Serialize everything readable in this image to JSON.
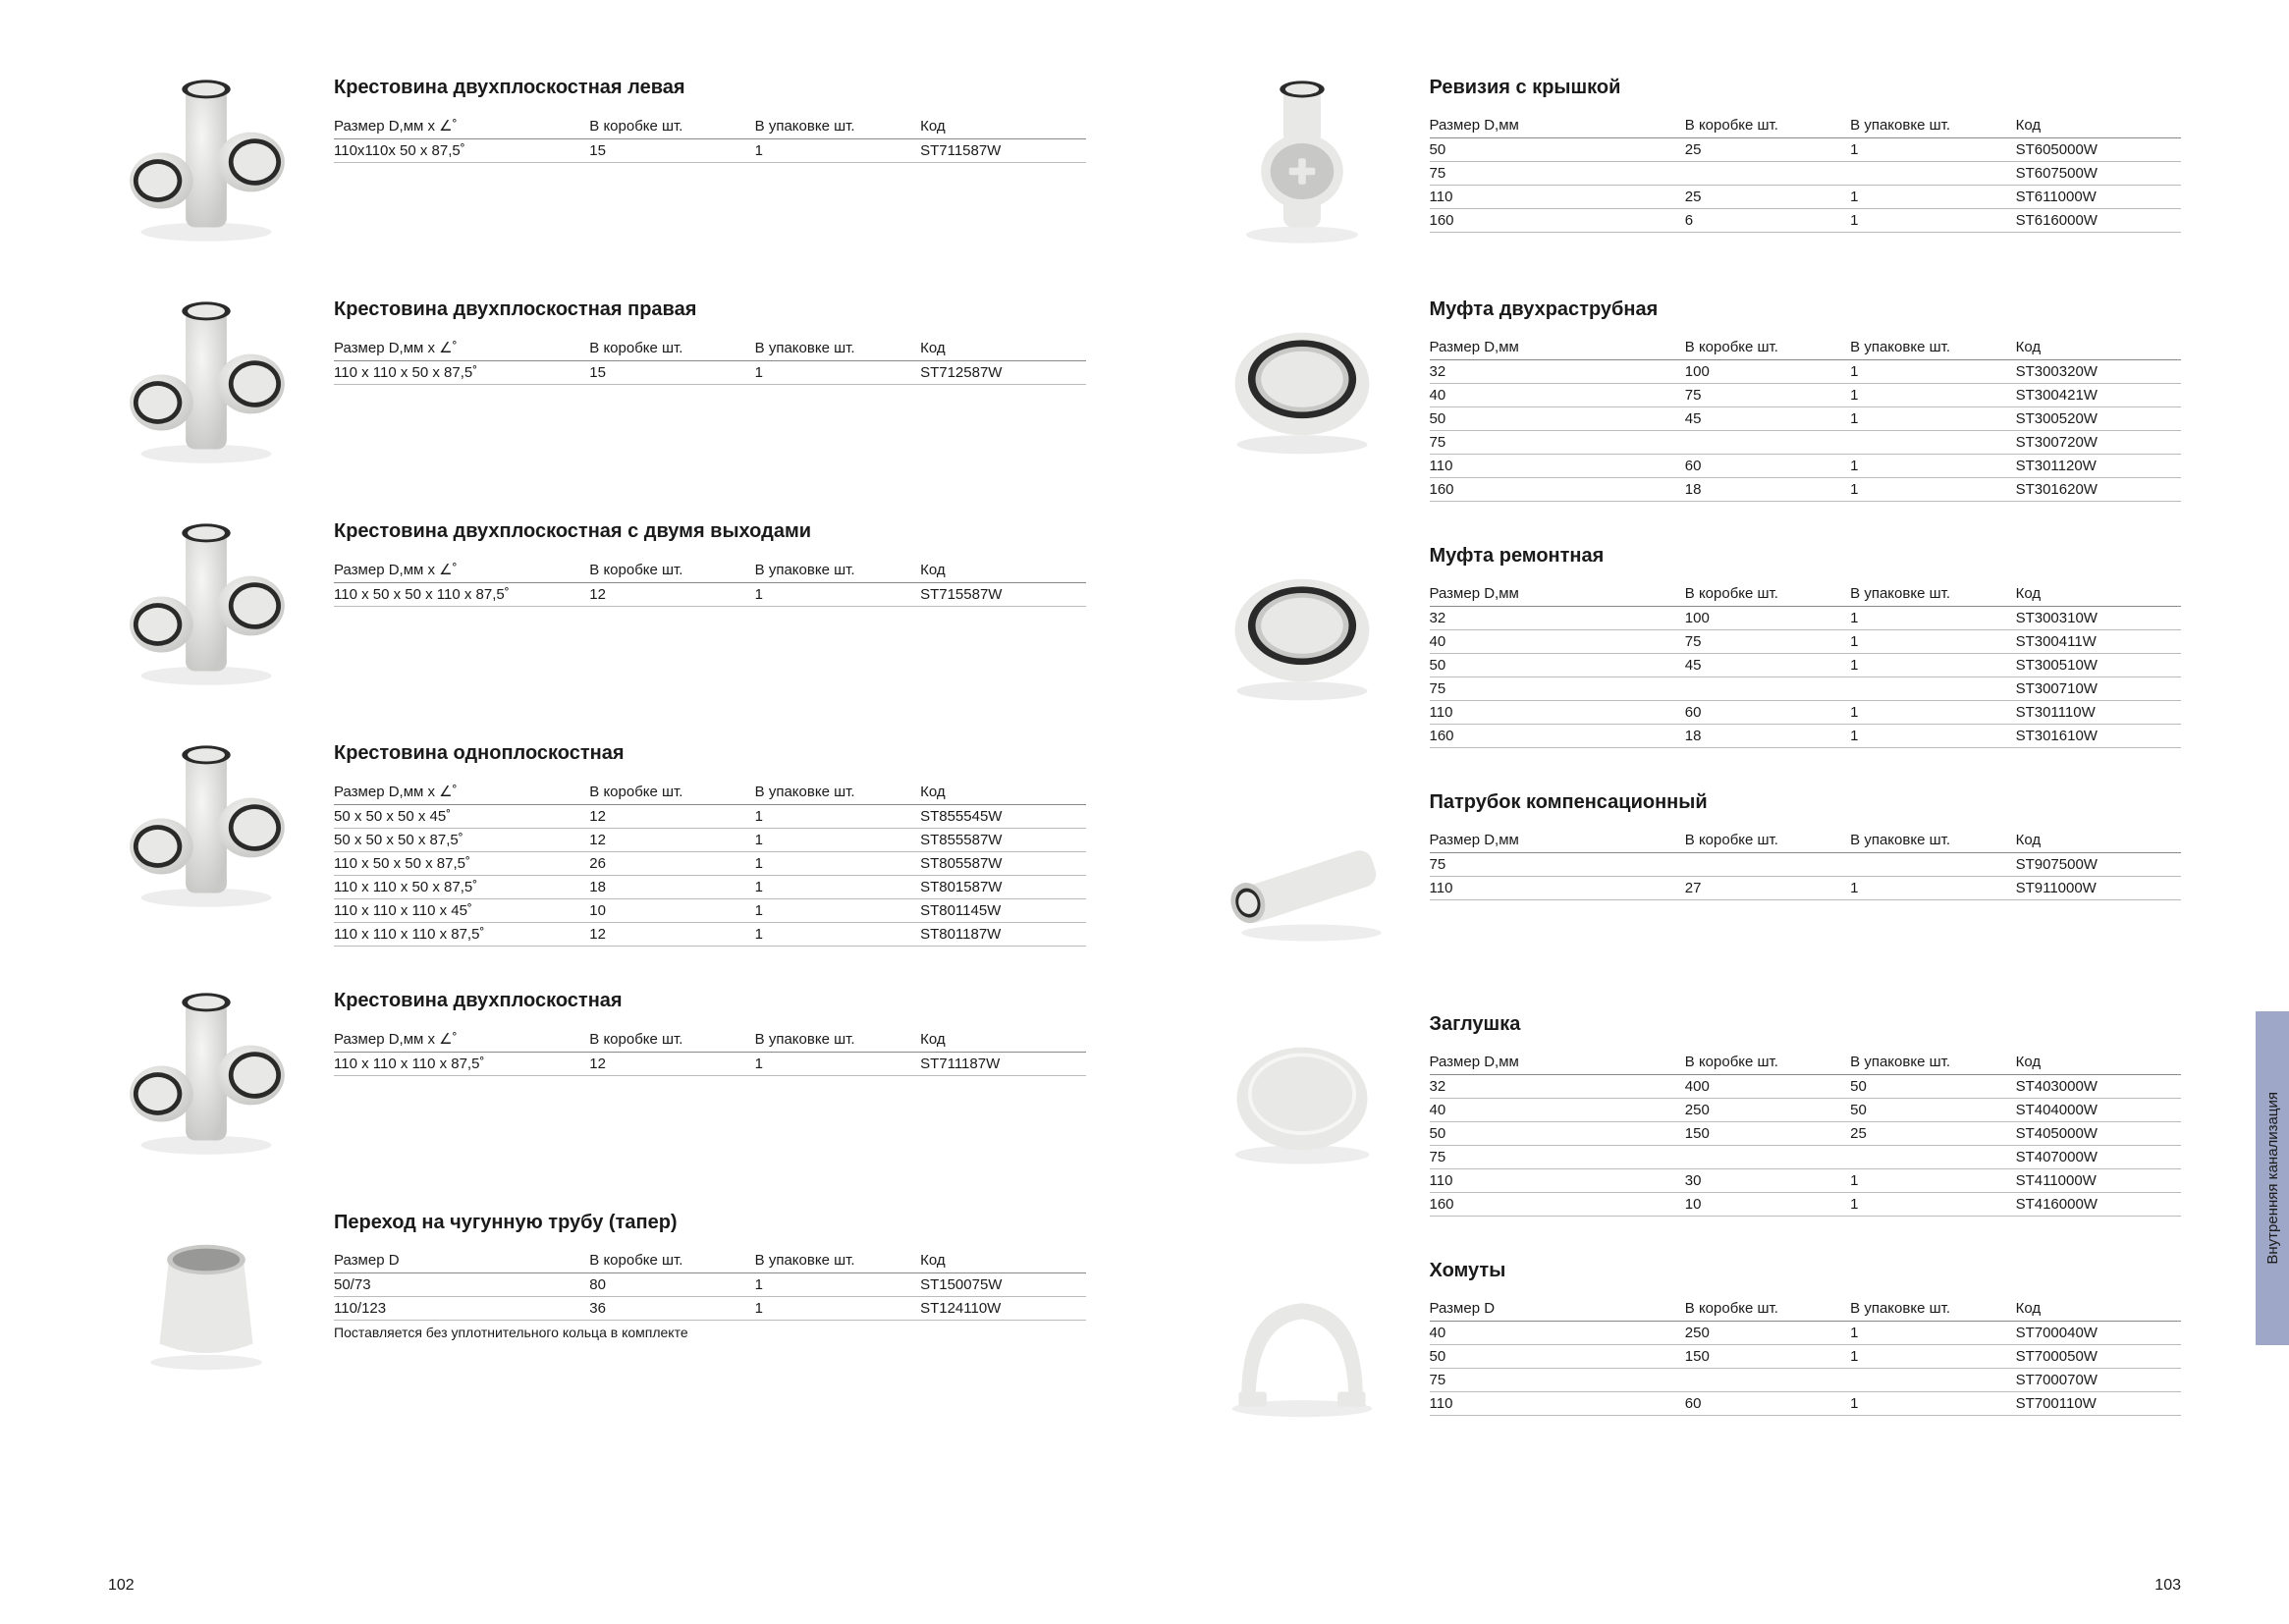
{
  "side_tab": "Внутренняя канализация",
  "page_left_num": "102",
  "page_right_num": "103",
  "headers": {
    "size_angle": "Размер D,мм x ∠˚",
    "size_mm": "Размер D,мм",
    "size_d": "Размер D",
    "box": "В коробке шт.",
    "pack": "В упаковке шт.",
    "code": "Код"
  },
  "left_sections": [
    {
      "title": "Крестовина двухплоскостная левая",
      "header_key": "size_angle",
      "img": "cross1",
      "rows": [
        {
          "size": "110x110x 50 x 87,5˚",
          "box": "15",
          "pack": "1",
          "code": "ST711587W"
        }
      ]
    },
    {
      "title": "Крестовина двухплоскостная правая",
      "header_key": "size_angle",
      "img": "cross2",
      "rows": [
        {
          "size": "110 x 110 x 50 x 87,5˚",
          "box": "15",
          "pack": "1",
          "code": "ST712587W"
        }
      ]
    },
    {
      "title": "Крестовина двухплоскостная с двумя выходами",
      "header_key": "size_angle",
      "img": "cross3",
      "rows": [
        {
          "size": "110 x 50 x 50 x 110 x 87,5˚",
          "box": "12",
          "pack": "1",
          "code": "ST715587W"
        }
      ]
    },
    {
      "title": "Крестовина одноплоскостная",
      "header_key": "size_angle",
      "img": "cross4",
      "rows": [
        {
          "size": "50 x 50 x 50 x 45˚",
          "box": "12",
          "pack": "1",
          "code": "ST855545W"
        },
        {
          "size": "50 x 50 x 50 x 87,5˚",
          "box": "12",
          "pack": "1",
          "code": "ST855587W"
        },
        {
          "size": "110 x 50 x 50 x 87,5˚",
          "box": "26",
          "pack": "1",
          "code": "ST805587W"
        },
        {
          "size": "110 x 110 x 50 x 87,5˚",
          "box": "18",
          "pack": "1",
          "code": "ST801587W"
        },
        {
          "size": "110 x 110 x 110 x 45˚",
          "box": "10",
          "pack": "1",
          "code": "ST801145W"
        },
        {
          "size": "110 x 110 x 110 x 87,5˚",
          "box": "12",
          "pack": "1",
          "code": "ST801187W"
        }
      ]
    },
    {
      "title": "Крестовина двухплоскостная",
      "header_key": "size_angle",
      "img": "cross5",
      "rows": [
        {
          "size": "110 x 110 x 110 x 87,5˚",
          "box": "12",
          "pack": "1",
          "code": "ST711187W"
        }
      ]
    },
    {
      "title": "Переход на чугунную трубу (тапер)",
      "header_key": "size_d",
      "img": "taper",
      "rows": [
        {
          "size": "50/73",
          "box": "80",
          "pack": "1",
          "code": "ST150075W"
        },
        {
          "size": "110/123",
          "box": "36",
          "pack": "1",
          "code": "ST124110W"
        }
      ],
      "footnote": "Поставляется без уплотнительного кольца в комплекте"
    }
  ],
  "right_sections": [
    {
      "title": "Ревизия с крышкой",
      "header_key": "size_mm",
      "img": "revision",
      "rows": [
        {
          "size": "50",
          "box": "25",
          "pack": "1",
          "code": "ST605000W"
        },
        {
          "size": "75",
          "box": "",
          "pack": "",
          "code": "ST607500W"
        },
        {
          "size": "110",
          "box": "25",
          "pack": "1",
          "code": "ST611000W"
        },
        {
          "size": "160",
          "box": "6",
          "pack": "1",
          "code": "ST616000W"
        }
      ]
    },
    {
      "title": "Муфта двухраструбная",
      "header_key": "size_mm",
      "img": "coupler1",
      "rows": [
        {
          "size": "32",
          "box": "100",
          "pack": "1",
          "code": "ST300320W"
        },
        {
          "size": "40",
          "box": "75",
          "pack": "1",
          "code": "ST300421W"
        },
        {
          "size": "50",
          "box": "45",
          "pack": "1",
          "code": "ST300520W"
        },
        {
          "size": "75",
          "box": "",
          "pack": "",
          "code": "ST300720W"
        },
        {
          "size": "110",
          "box": "60",
          "pack": "1",
          "code": "ST301120W"
        },
        {
          "size": "160",
          "box": "18",
          "pack": "1",
          "code": "ST301620W"
        }
      ]
    },
    {
      "title": "Муфта ремонтная",
      "header_key": "size_mm",
      "img": "coupler2",
      "rows": [
        {
          "size": "32",
          "box": "100",
          "pack": "1",
          "code": "ST300310W"
        },
        {
          "size": "40",
          "box": "75",
          "pack": "1",
          "code": "ST300411W"
        },
        {
          "size": "50",
          "box": "45",
          "pack": "1",
          "code": "ST300510W"
        },
        {
          "size": "75",
          "box": "",
          "pack": "",
          "code": "ST300710W"
        },
        {
          "size": "110",
          "box": "60",
          "pack": "1",
          "code": "ST301110W"
        },
        {
          "size": "160",
          "box": "18",
          "pack": "1",
          "code": "ST301610W"
        }
      ]
    },
    {
      "title": "Патрубок компенсационный",
      "header_key": "size_mm",
      "img": "pipe",
      "rows": [
        {
          "size": "75",
          "box": "",
          "pack": "",
          "code": "ST907500W"
        },
        {
          "size": "110",
          "box": "27",
          "pack": "1",
          "code": "ST911000W"
        }
      ]
    },
    {
      "title": "Заглушка",
      "header_key": "size_mm",
      "img": "cap",
      "rows": [
        {
          "size": "32",
          "box": "400",
          "pack": "50",
          "code": "ST403000W"
        },
        {
          "size": "40",
          "box": "250",
          "pack": "50",
          "code": "ST404000W"
        },
        {
          "size": "50",
          "box": "150",
          "pack": "25",
          "code": "ST405000W"
        },
        {
          "size": "75",
          "box": "",
          "pack": "",
          "code": "ST407000W"
        },
        {
          "size": "110",
          "box": "30",
          "pack": "1",
          "code": "ST411000W"
        },
        {
          "size": "160",
          "box": "10",
          "pack": "1",
          "code": "ST416000W"
        }
      ]
    },
    {
      "title": "Хомуты",
      "header_key": "size_d",
      "img": "clamp",
      "rows": [
        {
          "size": "40",
          "box": "250",
          "pack": "1",
          "code": "ST700040W"
        },
        {
          "size": "50",
          "box": "150",
          "pack": "1",
          "code": "ST700050W"
        },
        {
          "size": "75",
          "box": "",
          "pack": "",
          "code": "ST700070W"
        },
        {
          "size": "110",
          "box": "60",
          "pack": "1",
          "code": "ST700110W"
        }
      ]
    }
  ],
  "svg_colors": {
    "body": "#e8e8e6",
    "shadow": "#c8c8c6",
    "ring": "#2a2a2a",
    "highlight": "#f6f6f4"
  }
}
